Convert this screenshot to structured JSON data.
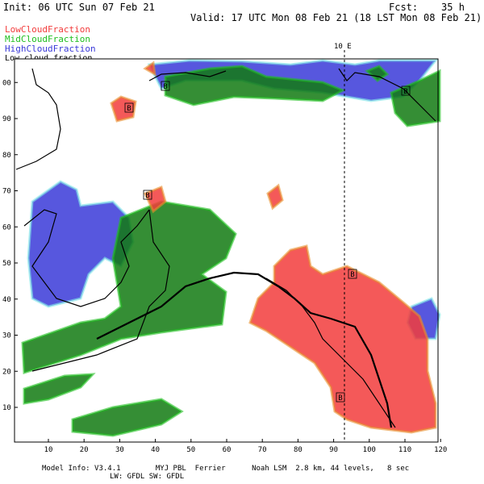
{
  "header": {
    "init": "Init: 06 UTC Sun 07 Feb 21",
    "forecast": "Fcst:    35 h",
    "valid": "Valid: 17 UTC Mon 08 Feb 21 (18 LST Mon 08 Feb 21)"
  },
  "legend": [
    {
      "label": "LowCloudFraction",
      "color": "#f23c3c"
    },
    {
      "label": "MidCloudFraction",
      "color": "#1fbf1f"
    },
    {
      "label": "HighCloudFraction",
      "color": "#3a3ad8"
    }
  ],
  "overlay_label": "Low cloud fraction",
  "map": {
    "meridian_label": "10 E",
    "x_labels": [
      "10",
      "20",
      "30",
      "40",
      "50",
      "60",
      "70",
      "80",
      "90",
      "100",
      "110",
      "120"
    ],
    "y_labels": [
      "10",
      "20",
      "30",
      "40",
      "50",
      "60",
      "70",
      "80",
      "90",
      "00"
    ],
    "markers": [
      "B",
      "B",
      "B",
      "B",
      "B",
      "B"
    ]
  },
  "footer": {
    "line1": "Model Info: V3.4.1        MYJ PBL  Ferrier      Noah LSM  2.8 km, 44 levels,   8 sec",
    "line2": "LW: GFDL SW: GFDL"
  }
}
